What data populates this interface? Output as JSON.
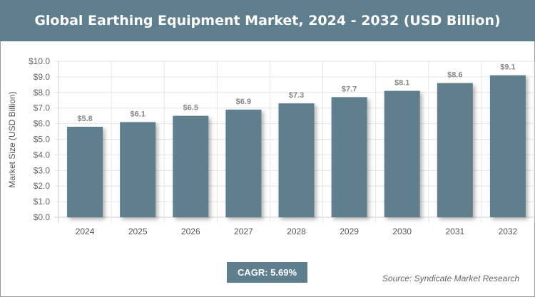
{
  "title": "Global Earthing Equipment Market, 2024 - 2032 (USD Billion)",
  "cagr": "CAGR: 5.69%",
  "source": "Source: Syndicate Market Research",
  "colors": {
    "bar": "#5f7f8f",
    "title_bg": "#5f7f8f"
  },
  "chart_data": {
    "type": "bar",
    "title": "Global Earthing Equipment Market, 2024 - 2032 (USD Billion)",
    "xlabel": "",
    "ylabel": "Market Size (USD Billion)",
    "categories": [
      "2024",
      "2025",
      "2026",
      "2027",
      "2028",
      "2029",
      "2030",
      "2031",
      "2032"
    ],
    "values": [
      5.8,
      6.1,
      6.5,
      6.9,
      7.3,
      7.7,
      8.1,
      8.6,
      9.1
    ],
    "data_labels": [
      "$5.8",
      "$6.1",
      "$6.5",
      "$6.9",
      "$7.3",
      "$7.7",
      "$8.1",
      "$8.6",
      "$9.1"
    ],
    "ylim": [
      0,
      10
    ],
    "yticks": [
      "$0.0",
      "$1.0",
      "$2.0",
      "$3.0",
      "$4.0",
      "$5.0",
      "$6.0",
      "$7.0",
      "$8.0",
      "$9.0",
      "$10.0"
    ],
    "grid": true,
    "legend": "none"
  }
}
